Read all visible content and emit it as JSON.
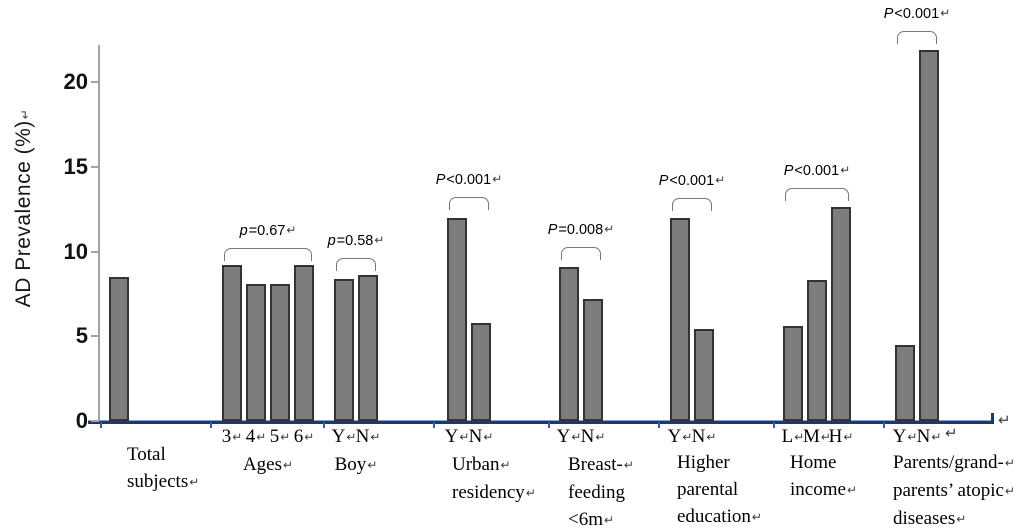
{
  "figure": {
    "y_axis_title": "AD Prevalence (%)",
    "return_mark": "↵"
  },
  "chart_data": {
    "type": "bar",
    "title": "",
    "xlabel": "",
    "ylabel": "AD Prevalence (%)",
    "ylim": [
      0,
      22.2
    ],
    "yticks": [
      0,
      5,
      10,
      15,
      20
    ],
    "grid": false,
    "legend": false,
    "bar_color": "#7d7d7d",
    "bar_border_color": "#333333",
    "x_axis_color": "#1f3864",
    "y_axis_color": "#a3a3a3",
    "groups": [
      {
        "name_lines": [
          "Total",
          "subjects↵"
        ],
        "categories": [],
        "values": [
          8.5
        ],
        "p_label": null
      },
      {
        "name_lines": [
          "Ages↵"
        ],
        "categories": [
          "3↵",
          "4↵",
          "5↵",
          "6↵"
        ],
        "values": [
          9.2,
          8.1,
          8.1,
          9.2
        ],
        "p_label": {
          "var": "p",
          "rest": "=0.67↵"
        }
      },
      {
        "name_lines": [
          "Boy↵"
        ],
        "categories": [
          "Y↵",
          "N↵"
        ],
        "values": [
          8.4,
          8.6
        ],
        "p_label": {
          "var": "p",
          "rest": "=0.58↵"
        }
      },
      {
        "name_lines": [
          "Urban↵",
          "residency↵"
        ],
        "categories": [
          "Y↵",
          "N↵"
        ],
        "values": [
          12.0,
          5.8
        ],
        "p_label": {
          "var": "P",
          "rest": "<0.001↵"
        }
      },
      {
        "name_lines": [
          "Breast-↵",
          "feeding",
          "<6m↵"
        ],
        "categories": [
          "Y↵",
          "N↵"
        ],
        "values": [
          9.1,
          7.2
        ],
        "p_label": {
          "var": "P",
          "rest": "=0.008↵"
        }
      },
      {
        "name_lines": [
          "Higher",
          "parental",
          "education↵"
        ],
        "categories": [
          "Y↵",
          "N↵"
        ],
        "values": [
          12.0,
          5.4
        ],
        "p_label": {
          "var": "P",
          "rest": "<0.001↵"
        }
      },
      {
        "name_lines": [
          "Home",
          "income↵"
        ],
        "categories": [
          "L↵",
          "M↵",
          "H↵"
        ],
        "values": [
          5.6,
          8.3,
          12.6
        ],
        "p_label": {
          "var": "P",
          "rest": "<0.001↵"
        }
      },
      {
        "name_lines": [
          "Parents/grand-↵",
          "parents’ atopic↵",
          "diseases↵"
        ],
        "categories": [
          "Y↵",
          "N↵"
        ],
        "values": [
          4.5,
          21.9
        ],
        "p_label": {
          "var": "P",
          "rest": "<0.001↵"
        }
      }
    ]
  }
}
